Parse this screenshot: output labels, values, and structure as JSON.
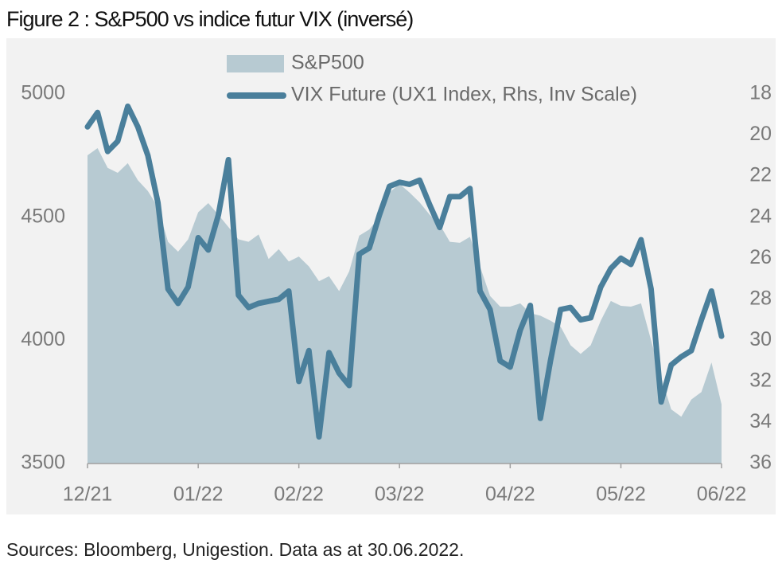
{
  "chart_data": {
    "type": "area_line",
    "title": "Figure 2 : S&P500 vs indice futur VIX (inversé)",
    "source": "Sources: Bloomberg, Unigestion. Data as at 30.06.2022.",
    "categories": [
      "12/21",
      null,
      null,
      null,
      null,
      null,
      null,
      null,
      null,
      null,
      null,
      "01/22",
      null,
      null,
      null,
      null,
      null,
      null,
      null,
      null,
      null,
      "02/22",
      null,
      null,
      null,
      null,
      null,
      null,
      null,
      null,
      null,
      "03/22",
      null,
      null,
      null,
      null,
      null,
      null,
      null,
      null,
      null,
      null,
      "04/22",
      null,
      null,
      null,
      null,
      null,
      null,
      null,
      null,
      null,
      null,
      "05/22",
      null,
      null,
      null,
      null,
      null,
      null,
      null,
      null,
      null,
      "06/22"
    ],
    "series": [
      {
        "name": "S&P500",
        "type": "area",
        "color": "#b7cad2",
        "axis": "y",
        "values": [
          4751,
          4780,
          4700,
          4680,
          4719,
          4650,
          4606,
          4540,
          4400,
          4360,
          4410,
          4520,
          4557,
          4510,
          4460,
          4410,
          4400,
          4430,
          4330,
          4370,
          4320,
          4340,
          4300,
          4240,
          4260,
          4200,
          4280,
          4425,
          4450,
          4500,
          4600,
          4635,
          4600,
          4560,
          4510,
          4470,
          4400,
          4396,
          4420,
          4300,
          4180,
          4137,
          4137,
          4150,
          4110,
          4100,
          4080,
          4056,
          3980,
          3945,
          3980,
          4080,
          4160,
          4140,
          4137,
          4150,
          4000,
          3850,
          3720,
          3690,
          3760,
          3790,
          3910,
          3740
        ]
      },
      {
        "name": "VIX Future (UX1 Index, Rhs, Inv Scale)",
        "type": "line",
        "color": "#4a7f9b",
        "axis": "y2",
        "values": [
          19.6,
          18.9,
          20.8,
          20.3,
          18.6,
          19.6,
          21.0,
          23.3,
          27.5,
          28.2,
          27.4,
          25.0,
          25.6,
          23.9,
          21.2,
          27.8,
          28.4,
          28.2,
          28.1,
          28.0,
          27.6,
          32.0,
          30.5,
          34.7,
          30.6,
          31.6,
          32.2,
          25.8,
          25.5,
          23.9,
          22.5,
          22.3,
          22.4,
          22.2,
          23.4,
          24.5,
          23.0,
          23.0,
          22.6,
          27.6,
          28.5,
          31.0,
          31.3,
          29.5,
          28.3,
          33.8,
          31.0,
          28.5,
          28.4,
          29.0,
          28.9,
          27.4,
          26.5,
          26.0,
          26.3,
          25.1,
          27.5,
          33.0,
          31.2,
          30.8,
          30.5,
          29.0,
          27.6,
          29.8
        ]
      }
    ],
    "ylim": [
      3500,
      5000
    ],
    "yticks": [
      3500,
      4000,
      4500,
      5000
    ],
    "y2lim": [
      18,
      36
    ],
    "y2ticks": [
      18,
      20,
      22,
      24,
      26,
      28,
      30,
      32,
      34,
      36
    ],
    "y2_inverted": true,
    "grid": false,
    "legend": "top"
  }
}
